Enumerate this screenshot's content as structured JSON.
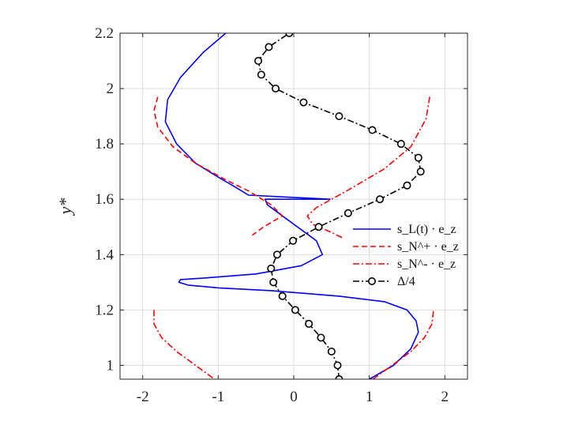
{
  "chart_data": {
    "type": "line",
    "title": "",
    "xlabel": "",
    "ylabel": "y*",
    "xlim": [
      -2.3,
      2.3
    ],
    "ylim": [
      0.95,
      2.2
    ],
    "xticks": [
      -2,
      -1,
      0,
      1,
      2
    ],
    "xtick_labels": [
      "-2",
      "-1",
      "0",
      "1",
      "2"
    ],
    "yticks": [
      1.0,
      1.2,
      1.4,
      1.6,
      1.8,
      2.0,
      2.2
    ],
    "ytick_labels": [
      "1",
      "1.2",
      "1.4",
      "1.6",
      "1.8",
      "2",
      "2.2"
    ],
    "grid": true,
    "legend_position": "right",
    "series": [
      {
        "name": "s_L(t) · e_z",
        "color": "#0000ff",
        "style": "solid",
        "points": [
          [
            1.0,
            0.95
          ],
          [
            1.32,
            1.0
          ],
          [
            1.55,
            1.06
          ],
          [
            1.65,
            1.12
          ],
          [
            1.62,
            1.16
          ],
          [
            1.5,
            1.2
          ],
          [
            1.2,
            1.23
          ],
          [
            0.6,
            1.25
          ],
          [
            -0.3,
            1.27
          ],
          [
            -1.0,
            1.28
          ],
          [
            -1.4,
            1.29
          ],
          [
            -1.52,
            1.3
          ],
          [
            -1.5,
            1.31
          ],
          [
            -1.2,
            1.315
          ],
          [
            -0.5,
            1.33
          ],
          [
            0.1,
            1.36
          ],
          [
            0.38,
            1.4
          ],
          [
            0.3,
            1.45
          ],
          [
            0.1,
            1.49
          ],
          [
            -0.1,
            1.53
          ],
          [
            -0.35,
            1.58
          ],
          [
            -0.38,
            1.6
          ],
          [
            0.48,
            1.6
          ],
          [
            -0.6,
            1.615
          ],
          [
            -0.75,
            1.64
          ],
          [
            -1.0,
            1.68
          ],
          [
            -1.3,
            1.73
          ],
          [
            -1.55,
            1.8
          ],
          [
            -1.7,
            1.88
          ],
          [
            -1.67,
            1.96
          ],
          [
            -1.5,
            2.04
          ],
          [
            -1.2,
            2.13
          ],
          [
            -0.9,
            2.2
          ]
        ]
      },
      {
        "name": "s_N^+ · e_z",
        "color": "#ff0000",
        "style": "dashed",
        "points": [
          [
            -1.8,
            1.97
          ],
          [
            -1.85,
            1.92
          ],
          [
            -1.8,
            1.86
          ],
          [
            -1.6,
            1.79
          ],
          [
            -1.3,
            1.73
          ],
          [
            -0.9,
            1.67
          ],
          [
            -0.6,
            1.63
          ],
          [
            -0.3,
            1.58
          ],
          [
            -0.15,
            1.54
          ],
          [
            -0.4,
            1.5
          ],
          [
            -0.55,
            1.47
          ]
        ]
      },
      {
        "name": "s_N^- · e_z",
        "color": "#ff0000",
        "style": "dashdot",
        "points": [
          [
            1.8,
            1.97
          ],
          [
            1.75,
            1.89
          ],
          [
            1.55,
            1.79
          ],
          [
            1.2,
            1.71
          ],
          [
            0.7,
            1.63
          ],
          [
            0.3,
            1.57
          ],
          [
            0.18,
            1.54
          ],
          [
            0.25,
            1.51
          ],
          [
            0.5,
            1.48
          ],
          [
            0.65,
            1.46
          ],
          [
            -1.85,
            1.2
          ],
          [
            -1.85,
            1.15
          ],
          [
            -1.75,
            1.1
          ],
          [
            -1.55,
            1.05
          ],
          [
            -1.3,
            1.0
          ],
          [
            -1.05,
            0.95
          ],
          [
            1.05,
            0.95
          ],
          [
            1.3,
            1.0
          ],
          [
            1.55,
            1.05
          ],
          [
            1.73,
            1.1
          ],
          [
            1.83,
            1.15
          ],
          [
            1.85,
            1.2
          ]
        ],
        "breaks_after_index": [
          9,
          15
        ]
      },
      {
        "name": "Δ/4",
        "color": "#000000",
        "style": "dashdot",
        "marker": "circle",
        "points": [
          [
            0.6,
            0.95
          ],
          [
            0.58,
            1.0
          ],
          [
            0.5,
            1.05
          ],
          [
            0.36,
            1.1
          ],
          [
            0.2,
            1.15
          ],
          [
            0.02,
            1.2
          ],
          [
            -0.15,
            1.25
          ],
          [
            -0.27,
            1.3
          ],
          [
            -0.3,
            1.35
          ],
          [
            -0.22,
            1.4
          ],
          [
            -0.01,
            1.45
          ],
          [
            0.33,
            1.5
          ],
          [
            0.72,
            1.55
          ],
          [
            1.14,
            1.6
          ],
          [
            1.5,
            1.65
          ],
          [
            1.68,
            1.7
          ],
          [
            1.65,
            1.75
          ],
          [
            1.42,
            1.8
          ],
          [
            1.04,
            1.85
          ],
          [
            0.6,
            1.9
          ],
          [
            0.13,
            1.95
          ],
          [
            -0.24,
            2.0
          ],
          [
            -0.43,
            2.05
          ],
          [
            -0.47,
            2.1
          ],
          [
            -0.33,
            2.15
          ],
          [
            -0.06,
            2.2
          ]
        ]
      }
    ]
  }
}
